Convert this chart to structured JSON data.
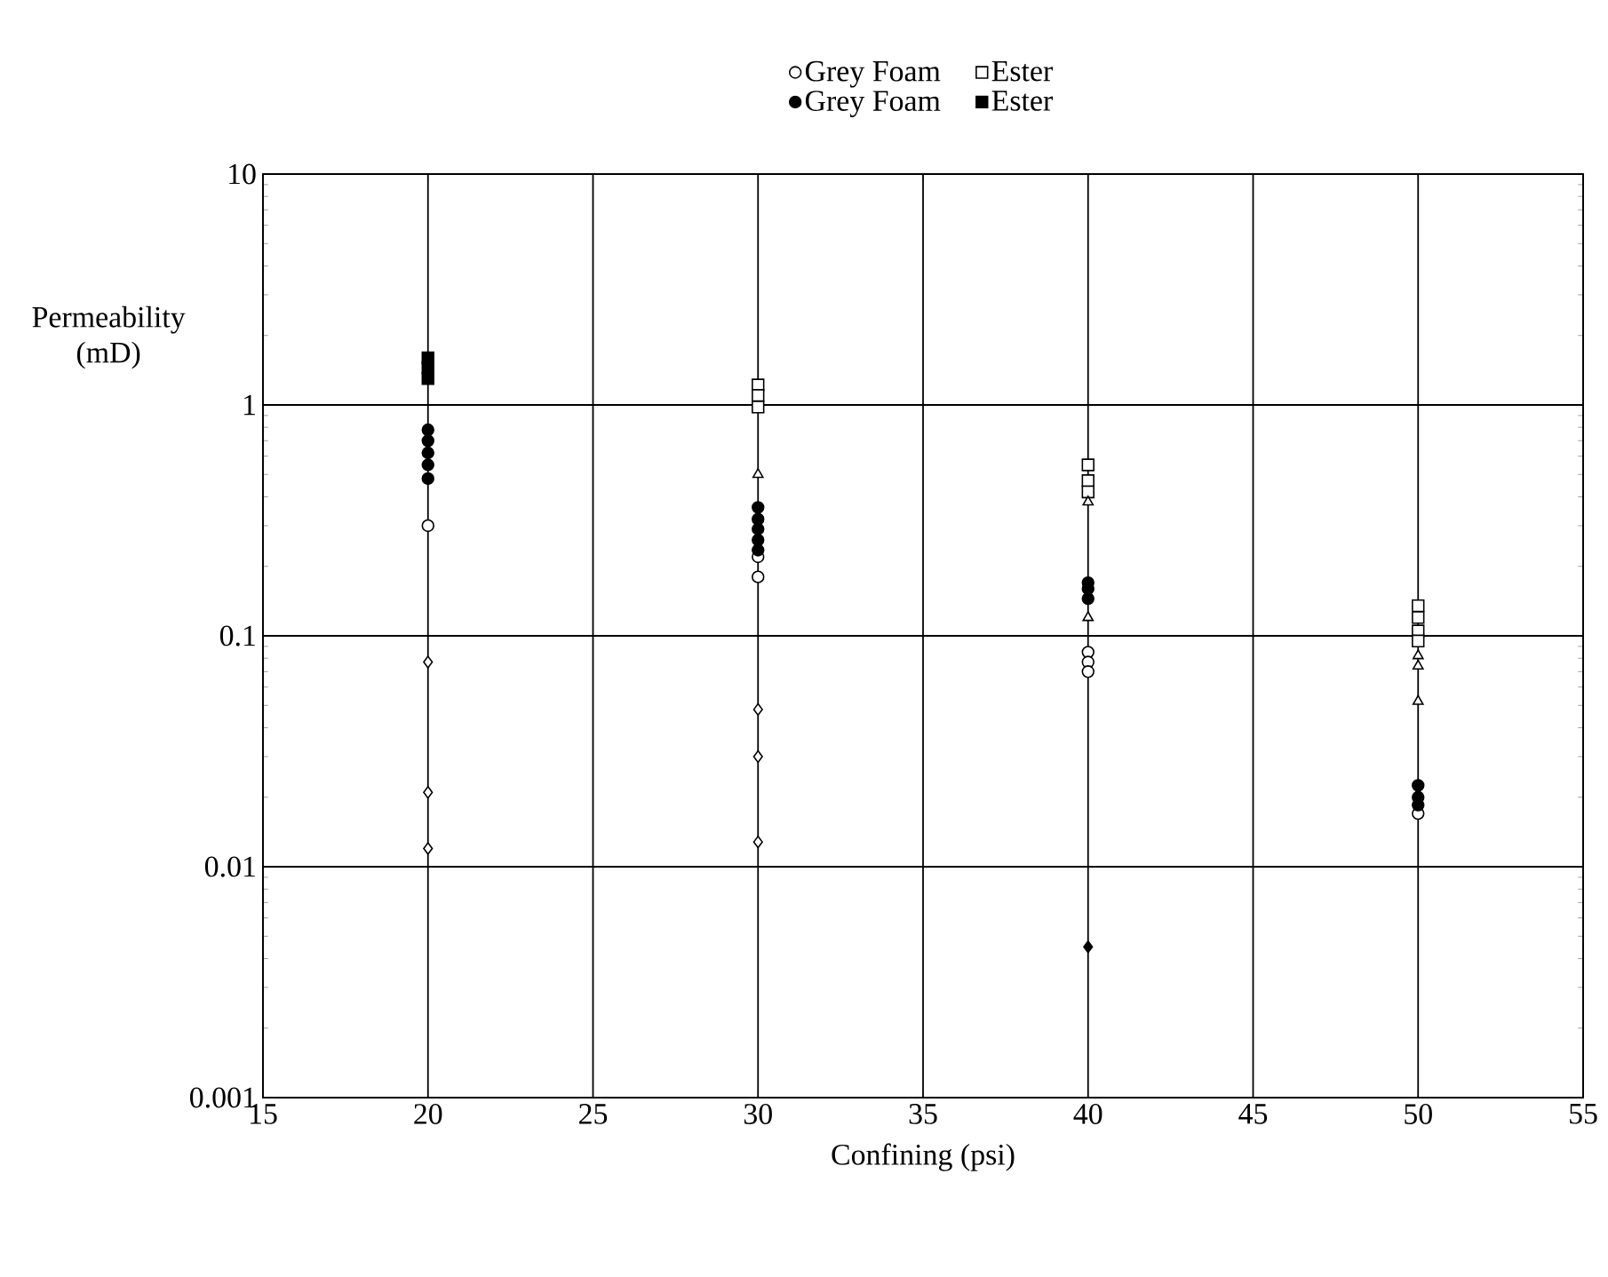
{
  "chart_data": {
    "type": "scatter",
    "xlabel": "Confining (psi)",
    "ylabel": "Permeability (mD)",
    "xlim": [
      15,
      55
    ],
    "xticks": [
      15,
      20,
      25,
      30,
      35,
      40,
      45,
      50,
      55
    ],
    "ylim": [
      0.001,
      10
    ],
    "yticks": [
      0.001,
      0.01,
      0.1,
      1,
      10
    ],
    "log": "y",
    "grid": true,
    "legend": "top",
    "series": [
      {
        "name": "Grey Foam",
        "color": "#ffffff",
        "marker": "circle",
        "x": [
          20,
          30,
          30,
          40,
          40,
          40,
          50
        ],
        "values": [
          0.3,
          0.22,
          0.18,
          0.085,
          0.077,
          0.07,
          0.017
        ]
      },
      {
        "name": "Ester",
        "color": "#ffffff",
        "marker": "square",
        "x": [
          30,
          30,
          30,
          40,
          40,
          40,
          50,
          50,
          50,
          50
        ],
        "values": [
          1.22,
          1.1,
          0.98,
          0.55,
          0.47,
          0.42,
          0.135,
          0.12,
          0.105,
          0.095
        ]
      },
      {
        "color": "#ffffff",
        "marker": "diamond",
        "x": [
          20,
          20,
          20,
          30,
          30,
          30
        ],
        "values": [
          0.077,
          0.021,
          0.012,
          0.048,
          0.03,
          0.0128
        ]
      },
      {
        "color": "#ffffff",
        "marker": "triangle",
        "x": [
          30,
          40,
          40,
          50,
          50,
          50
        ],
        "values": [
          0.5,
          0.38,
          0.12,
          0.082,
          0.074,
          0.052
        ]
      },
      {
        "name": "Grey Foam",
        "color": "#000000",
        "marker": "circle",
        "x": [
          20,
          20,
          20,
          20,
          20,
          30,
          30,
          30,
          30,
          30,
          40,
          40,
          40,
          50,
          50,
          50
        ],
        "values": [
          0.78,
          0.7,
          0.62,
          0.55,
          0.48,
          0.36,
          0.32,
          0.29,
          0.26,
          0.235,
          0.17,
          0.16,
          0.145,
          0.0225,
          0.02,
          0.0185
        ]
      },
      {
        "name": "Ester",
        "color": "#000000",
        "marker": "square",
        "x": [
          20,
          20,
          20
        ],
        "values": [
          1.6,
          1.45,
          1.3
        ]
      },
      {
        "color": "#000000",
        "marker": "diamond",
        "x": [
          40
        ],
        "values": [
          0.0045
        ]
      }
    ]
  }
}
